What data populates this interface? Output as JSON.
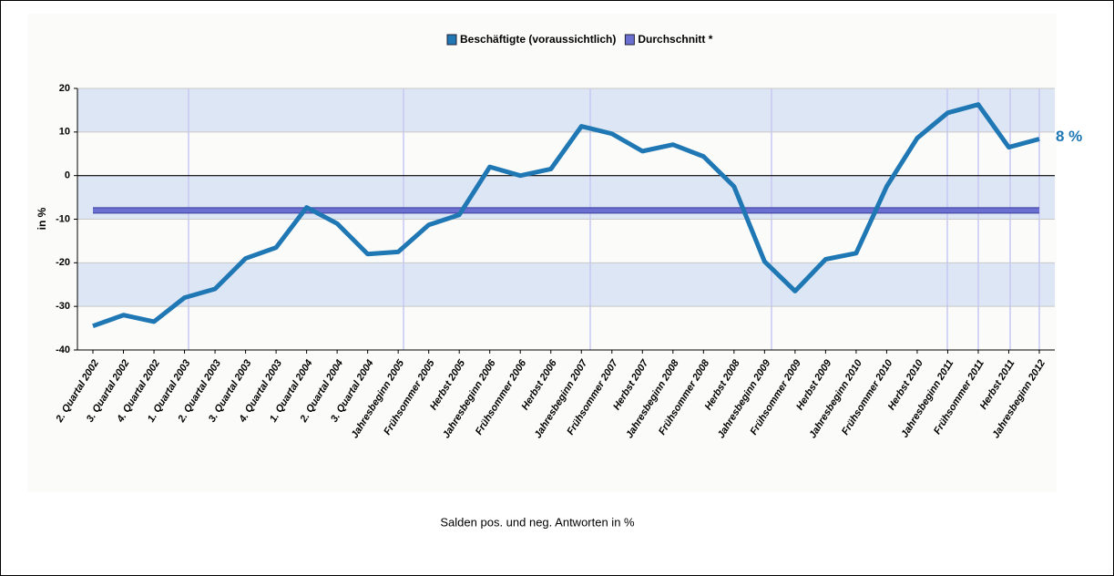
{
  "chart_data": {
    "type": "line",
    "legend": "top",
    "ylabel": "in %",
    "caption": "Salden pos. und neg. Antworten in %",
    "categories": [
      "2. Quartal 2002",
      "3. Quartal 2002",
      "4. Quartal 2002",
      "1. Quartal 2003",
      "2. Quartal 2003",
      "3. Quartal 2003",
      "4. Quartal 2003",
      "1. Quartal 2004",
      "2. Quartal 2004",
      "3. Quartal 2004",
      "Jahresbeginn 2005",
      "Frühsommer 2005",
      "Herbst 2005",
      "Jahresbeginn 2006",
      "Frühsommer 2006",
      "Herbst 2006",
      "Jahresbeginn 2007",
      "Frühsommer 2007",
      "Herbst 2007",
      "Jahresbeginn 2008",
      "Frühsommer 2008",
      "Herbst 2008",
      "Jahresbeginn 2009",
      "Frühsommer 2009",
      "Herbst 2009",
      "Jahresbeginn 2010",
      "Frühsommer 2010",
      "Herbst 2010",
      "Jahresbeginn 2011",
      "Frühsommer 2011",
      "Herbst 2011",
      "Jahresbeginn 2012"
    ],
    "series": [
      {
        "name": "Beschäftigte (voraussichtlich)",
        "color": "#1f77b4",
        "values": [
          -34.5,
          -32,
          -33.5,
          -28,
          -26,
          -19,
          -16.5,
          -7.3,
          -11,
          -18,
          -17.5,
          -11.3,
          -9,
          2,
          0,
          1.5,
          11.3,
          9.6,
          5.6,
          7.1,
          4.4,
          -2.5,
          -19.7,
          -26.5,
          -19.2,
          -17.8,
          -2.5,
          8.6,
          14.4,
          16.3,
          6.5,
          8.4
        ],
        "value_labels": [
          null,
          null,
          null,
          null,
          null,
          null,
          null,
          null,
          null,
          null,
          null,
          null,
          null,
          null,
          null,
          null,
          null,
          null,
          null,
          null,
          null,
          null,
          null,
          null,
          null,
          null,
          null,
          null,
          null,
          null,
          null,
          "8 %"
        ]
      },
      {
        "name": "Durchschnitt *",
        "color": "#6b6fd0",
        "values": [
          -8,
          -8,
          -8,
          -8,
          -8,
          -8,
          -8,
          -8,
          -8,
          -8,
          -8,
          -8,
          -8,
          -8,
          -8,
          -8,
          -8,
          -8,
          -8,
          -8,
          -8,
          -8,
          -8,
          -8,
          -8,
          -8,
          -8,
          -8,
          -8,
          -8,
          -8,
          -8
        ]
      }
    ],
    "ylim": [
      -40,
      20
    ],
    "yticks": [
      20,
      10,
      0,
      -10,
      -20,
      -30,
      -40
    ],
    "grid": true
  }
}
